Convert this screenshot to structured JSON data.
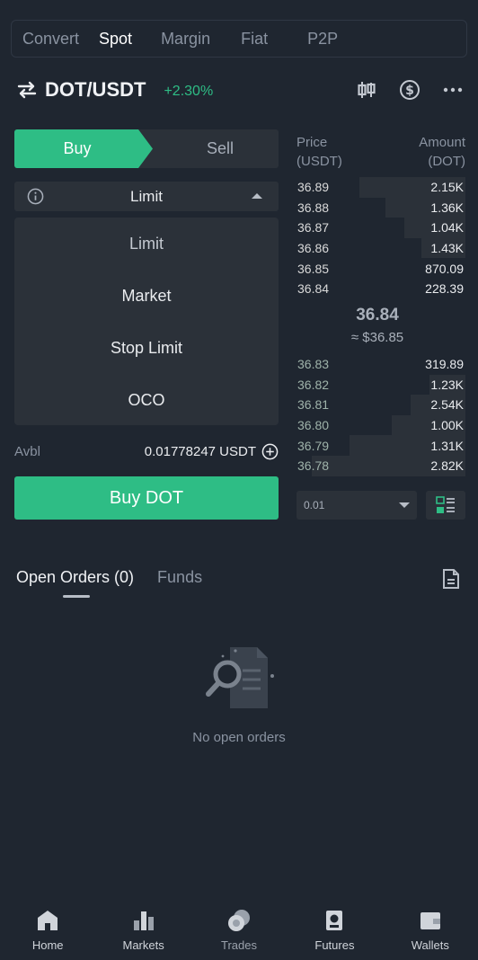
{
  "top_tabs": [
    "Convert",
    "Spot",
    "Margin",
    "Fiat",
    "P2P"
  ],
  "active_top_tab": "Spot",
  "pair": {
    "name": "DOT/USDT",
    "change": "+2.30%"
  },
  "trade_side": {
    "buy": "Buy",
    "sell": "Sell"
  },
  "order_type": {
    "selected": "Limit",
    "options": [
      "Limit",
      "Market",
      "Stop Limit",
      "OCO"
    ]
  },
  "avbl": {
    "label": "Avbl",
    "value": "0.01778247 USDT"
  },
  "buy_button": "Buy DOT",
  "order_book": {
    "price_header": "Price",
    "price_unit": "(USDT)",
    "amount_header": "Amount",
    "amount_unit": "(DOT)",
    "asks": [
      {
        "price": "36.89",
        "amount": "2.15K",
        "depth": 0.62
      },
      {
        "price": "36.88",
        "amount": "1.36K",
        "depth": 0.47
      },
      {
        "price": "36.87",
        "amount": "1.04K",
        "depth": 0.36
      },
      {
        "price": "36.86",
        "amount": "1.43K",
        "depth": 0.26
      },
      {
        "price": "36.85",
        "amount": "870.09",
        "depth": 0
      },
      {
        "price": "36.84",
        "amount": "228.39",
        "depth": 0
      }
    ],
    "mid_price": "36.84",
    "mid_fiat": "≈ $36.85",
    "bids": [
      {
        "price": "36.83",
        "amount": "319.89",
        "depth": 0
      },
      {
        "price": "36.82",
        "amount": "1.23K",
        "depth": 0.21
      },
      {
        "price": "36.81",
        "amount": "2.54K",
        "depth": 0.32
      },
      {
        "price": "36.80",
        "amount": "1.00K",
        "depth": 0.43
      },
      {
        "price": "36.79",
        "amount": "1.31K",
        "depth": 0.68
      },
      {
        "price": "36.78",
        "amount": "2.82K",
        "depth": 0.9
      }
    ],
    "tick_size": "0.01"
  },
  "orders": {
    "tabs": [
      "Open Orders (0)",
      "Funds"
    ],
    "empty_text": "No open orders"
  },
  "bottom_nav": [
    {
      "label": "Home",
      "icon": "home-icon"
    },
    {
      "label": "Markets",
      "icon": "markets-icon"
    },
    {
      "label": "Trades",
      "icon": "trades-icon"
    },
    {
      "label": "Futures",
      "icon": "futures-icon"
    },
    {
      "label": "Wallets",
      "icon": "wallets-icon"
    }
  ],
  "colors": {
    "background": "#1f2630",
    "panel": "#2b3139",
    "green": "#2ebd85",
    "text": "#eaecef",
    "muted": "#8a93a1"
  }
}
